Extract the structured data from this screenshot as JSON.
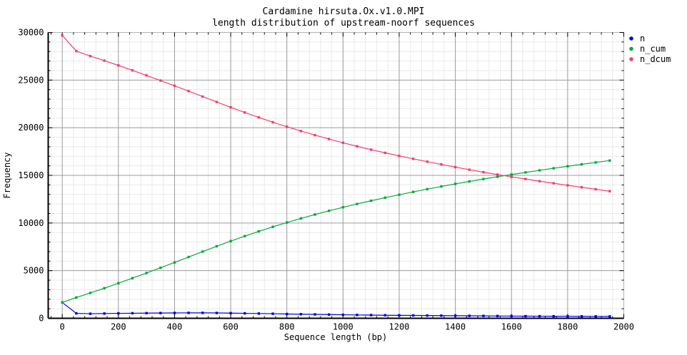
{
  "chart_data": {
    "type": "line",
    "title": "Cardamine hirsuta.Ox.v1.0.MPI",
    "subtitle": "length distribution of upstream-noorf sequences",
    "xlabel": "Sequence length (bp)",
    "ylabel": "Frequency",
    "xlim": [
      -50,
      2000
    ],
    "ylim": [
      0,
      30000
    ],
    "x_ticks": [
      0,
      200,
      400,
      600,
      800,
      1000,
      1200,
      1400,
      1600,
      1800,
      2000
    ],
    "y_ticks": [
      0,
      5000,
      10000,
      15000,
      20000,
      25000,
      30000
    ],
    "x_minor_step": 40,
    "y_minor_step": 1000,
    "grid": {
      "major": true,
      "minor": true
    },
    "legend_position": "outside-top-right",
    "x": [
      0,
      50,
      100,
      150,
      200,
      250,
      300,
      350,
      400,
      450,
      500,
      550,
      600,
      650,
      700,
      750,
      800,
      850,
      900,
      950,
      1000,
      1050,
      1100,
      1150,
      1200,
      1250,
      1300,
      1350,
      1400,
      1450,
      1500,
      1550,
      1600,
      1650,
      1700,
      1750,
      1800,
      1850,
      1900,
      1950
    ],
    "series": [
      {
        "name": "n",
        "color": "#0000e6",
        "values": [
          1660,
          520,
          480,
          500,
          520,
          530,
          540,
          550,
          560,
          570,
          570,
          560,
          540,
          520,
          500,
          480,
          450,
          430,
          410,
          390,
          370,
          350,
          335,
          320,
          310,
          300,
          290,
          280,
          270,
          260,
          250,
          240,
          230,
          225,
          220,
          215,
          210,
          205,
          200,
          195
        ]
      },
      {
        "name": "n_cum",
        "color": "#0aa83c",
        "values": [
          1660,
          2180,
          2660,
          3160,
          3680,
          4210,
          4750,
          5300,
          5860,
          6430,
          7000,
          7560,
          8100,
          8620,
          9120,
          9600,
          10050,
          10480,
          10890,
          11280,
          11650,
          12000,
          12335,
          12655,
          12965,
          13265,
          13555,
          13835,
          14105,
          14365,
          14615,
          14855,
          15085,
          15310,
          15530,
          15745,
          15955,
          16160,
          16360,
          16555
        ]
      },
      {
        "name": "n_dcum",
        "color": "#f23f6f",
        "values": [
          29700,
          28040,
          27520,
          27040,
          26540,
          26020,
          25490,
          24950,
          24400,
          23840,
          23270,
          22700,
          22140,
          21600,
          21080,
          20580,
          20100,
          19650,
          19220,
          18810,
          18420,
          18050,
          17700,
          17365,
          17045,
          16735,
          16435,
          16145,
          15865,
          15595,
          15335,
          15085,
          14845,
          14615,
          14390,
          14170,
          13955,
          13745,
          13540,
          13340
        ]
      }
    ],
    "style": {
      "major_grid_color": "#9b9b9b",
      "minor_grid_color": "#e9e9e9",
      "border_dark_color": "#000000",
      "border_light_color": "#b2b2b2",
      "text_color": "#000000"
    }
  }
}
